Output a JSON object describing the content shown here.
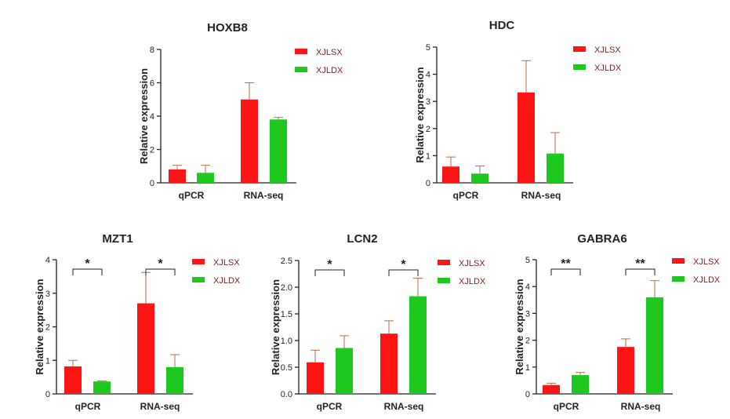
{
  "colors": {
    "XJLSX": "#ff1414",
    "XJLDX": "#1ec81e",
    "error": "#b86a4a",
    "axis": "#222222"
  },
  "chart_data": [
    {
      "type": "bar",
      "title": "HOXB8",
      "ylabel": "Relative expression",
      "categories": [
        "qPCR",
        "RNA-seq"
      ],
      "ylim": [
        0,
        8
      ],
      "yticks": [
        "0",
        "2",
        "4",
        "6",
        "8"
      ],
      "legend_position": "top-right",
      "series": [
        {
          "name": "XJLSX",
          "values": [
            0.8,
            5.0
          ],
          "errors": [
            0.25,
            1.0
          ]
        },
        {
          "name": "XJLDX",
          "values": [
            0.6,
            3.8
          ],
          "errors": [
            0.45,
            0.12
          ]
        }
      ],
      "significance": []
    },
    {
      "type": "bar",
      "title": "HDC",
      "ylabel": "Relative expression",
      "categories": [
        "qPCR",
        "RNA-seq"
      ],
      "ylim": [
        0,
        5
      ],
      "yticks": [
        "0",
        "1",
        "2",
        "3",
        "4",
        "5"
      ],
      "legend_position": "top-right",
      "series": [
        {
          "name": "XJLSX",
          "values": [
            0.6,
            3.33
          ],
          "errors": [
            0.35,
            1.17
          ]
        },
        {
          "name": "XJLDX",
          "values": [
            0.34,
            1.08
          ],
          "errors": [
            0.28,
            0.77
          ]
        }
      ],
      "significance": []
    },
    {
      "type": "bar",
      "title": "MZT1",
      "ylabel": "Relative expression",
      "categories": [
        "qPCR",
        "RNA-seq"
      ],
      "ylim": [
        0,
        4
      ],
      "yticks": [
        "0",
        "1",
        "2",
        "3",
        "4"
      ],
      "legend_position": "top-right",
      "series": [
        {
          "name": "XJLSX",
          "values": [
            0.82,
            2.7
          ],
          "errors": [
            0.18,
            0.92
          ]
        },
        {
          "name": "XJLDX",
          "values": [
            0.37,
            0.8
          ],
          "errors": [
            0.02,
            0.37
          ]
        }
      ],
      "significance": [
        "*",
        "*"
      ]
    },
    {
      "type": "bar",
      "title": "LCN2",
      "ylabel": "Relative expression",
      "categories": [
        "qPCR",
        "RNA-seq"
      ],
      "ylim": [
        0,
        2.5
      ],
      "yticks": [
        "0.0",
        "0.5",
        "1.0",
        "1.5",
        "2.0",
        "2.5"
      ],
      "legend_position": "top-right",
      "series": [
        {
          "name": "XJLSX",
          "values": [
            0.59,
            1.13
          ],
          "errors": [
            0.23,
            0.24
          ]
        },
        {
          "name": "XJLDX",
          "values": [
            0.86,
            1.83
          ],
          "errors": [
            0.23,
            0.34
          ]
        }
      ],
      "significance": [
        "*",
        "*"
      ]
    },
    {
      "type": "bar",
      "title": "GABRA6",
      "ylabel": "Relative expression",
      "categories": [
        "qPCR",
        "RNA-seq"
      ],
      "ylim": [
        0,
        5
      ],
      "yticks": [
        "0",
        "1",
        "2",
        "3",
        "4",
        "5"
      ],
      "legend_position": "top-right",
      "series": [
        {
          "name": "XJLSX",
          "values": [
            0.33,
            1.75
          ],
          "errors": [
            0.07,
            0.3
          ]
        },
        {
          "name": "XJLDX",
          "values": [
            0.7,
            3.6
          ],
          "errors": [
            0.1,
            0.62
          ]
        }
      ],
      "significance": [
        "**",
        "**"
      ]
    }
  ]
}
